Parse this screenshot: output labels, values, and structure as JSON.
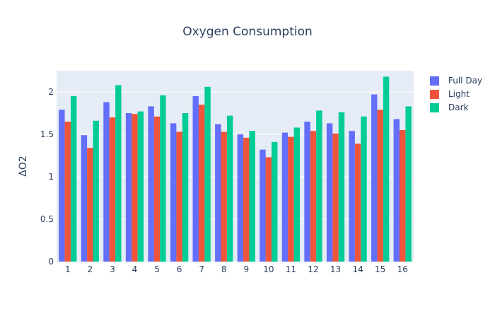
{
  "chart_data": {
    "type": "bar",
    "title": "Oxygen Consumption",
    "xlabel": "",
    "ylabel": "ΔO2",
    "ylim": [
      0,
      2.25
    ],
    "yticks": [
      0,
      0.5,
      1,
      1.5,
      2
    ],
    "ytick_labels": [
      "0",
      "0.5",
      "1",
      "1.5",
      "2"
    ],
    "grid": true,
    "legend_position": "top-right",
    "categories": [
      "1",
      "2",
      "3",
      "4",
      "5",
      "6",
      "7",
      "8",
      "9",
      "10",
      "11",
      "12",
      "13",
      "14",
      "15",
      "16"
    ],
    "series": [
      {
        "name": "Full Day",
        "color": "#636efa",
        "values": [
          1.79,
          1.49,
          1.88,
          1.75,
          1.83,
          1.63,
          1.95,
          1.62,
          1.5,
          1.32,
          1.52,
          1.65,
          1.63,
          1.54,
          1.97,
          1.68
        ]
      },
      {
        "name": "Light",
        "color": "#ef553b",
        "values": [
          1.65,
          1.34,
          1.7,
          1.74,
          1.71,
          1.53,
          1.85,
          1.53,
          1.46,
          1.23,
          1.47,
          1.54,
          1.51,
          1.39,
          1.79,
          1.55
        ]
      },
      {
        "name": "Dark",
        "color": "#00cc96",
        "values": [
          1.95,
          1.66,
          2.08,
          1.77,
          1.96,
          1.75,
          2.06,
          1.72,
          1.54,
          1.41,
          1.58,
          1.78,
          1.76,
          1.71,
          2.18,
          1.83
        ]
      }
    ]
  }
}
